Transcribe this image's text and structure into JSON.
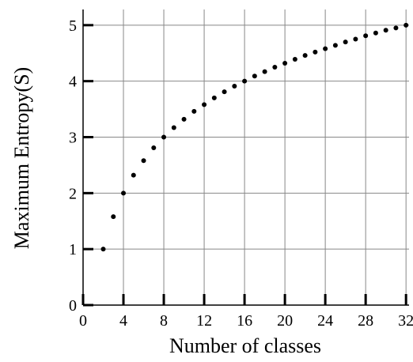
{
  "chart_data": {
    "type": "scatter",
    "x_label": "Number of classes",
    "y_label": "Maximum Entropy(S)",
    "x": [
      2,
      3,
      4,
      5,
      6,
      7,
      8,
      9,
      10,
      11,
      12,
      13,
      14,
      15,
      16,
      17,
      18,
      19,
      20,
      21,
      22,
      23,
      24,
      25,
      26,
      27,
      28,
      29,
      30,
      31,
      32
    ],
    "values": [
      1,
      1.58,
      2,
      2.32,
      2.58,
      2.81,
      3,
      3.17,
      3.32,
      3.46,
      3.58,
      3.7,
      3.81,
      3.91,
      4,
      4.09,
      4.17,
      4.25,
      4.32,
      4.39,
      4.46,
      4.52,
      4.58,
      4.64,
      4.7,
      4.75,
      4.81,
      4.86,
      4.91,
      4.95,
      5
    ],
    "color": "#000000",
    "xlim": [
      0,
      32.3
    ],
    "ylim": [
      0,
      5.28
    ],
    "xticks": [
      0,
      4,
      8,
      12,
      16,
      20,
      24,
      28,
      32
    ],
    "yticks": [
      0,
      1,
      2,
      3,
      4,
      5
    ],
    "grid": true
  }
}
